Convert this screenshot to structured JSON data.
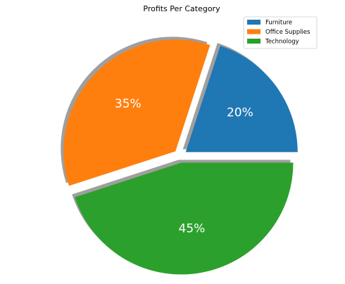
{
  "chart_data": {
    "type": "pie",
    "title": "Profits Per Category",
    "categories": [
      "Furniture",
      "Office Supplies",
      "Technology"
    ],
    "values": [
      20,
      35,
      45
    ],
    "value_labels": [
      "20%",
      "35%",
      "45%"
    ],
    "colors": [
      "#1f77b4",
      "#ff7f0e",
      "#2ca02c"
    ],
    "exploded": true,
    "shadow": true,
    "legend_position": "top-right"
  }
}
